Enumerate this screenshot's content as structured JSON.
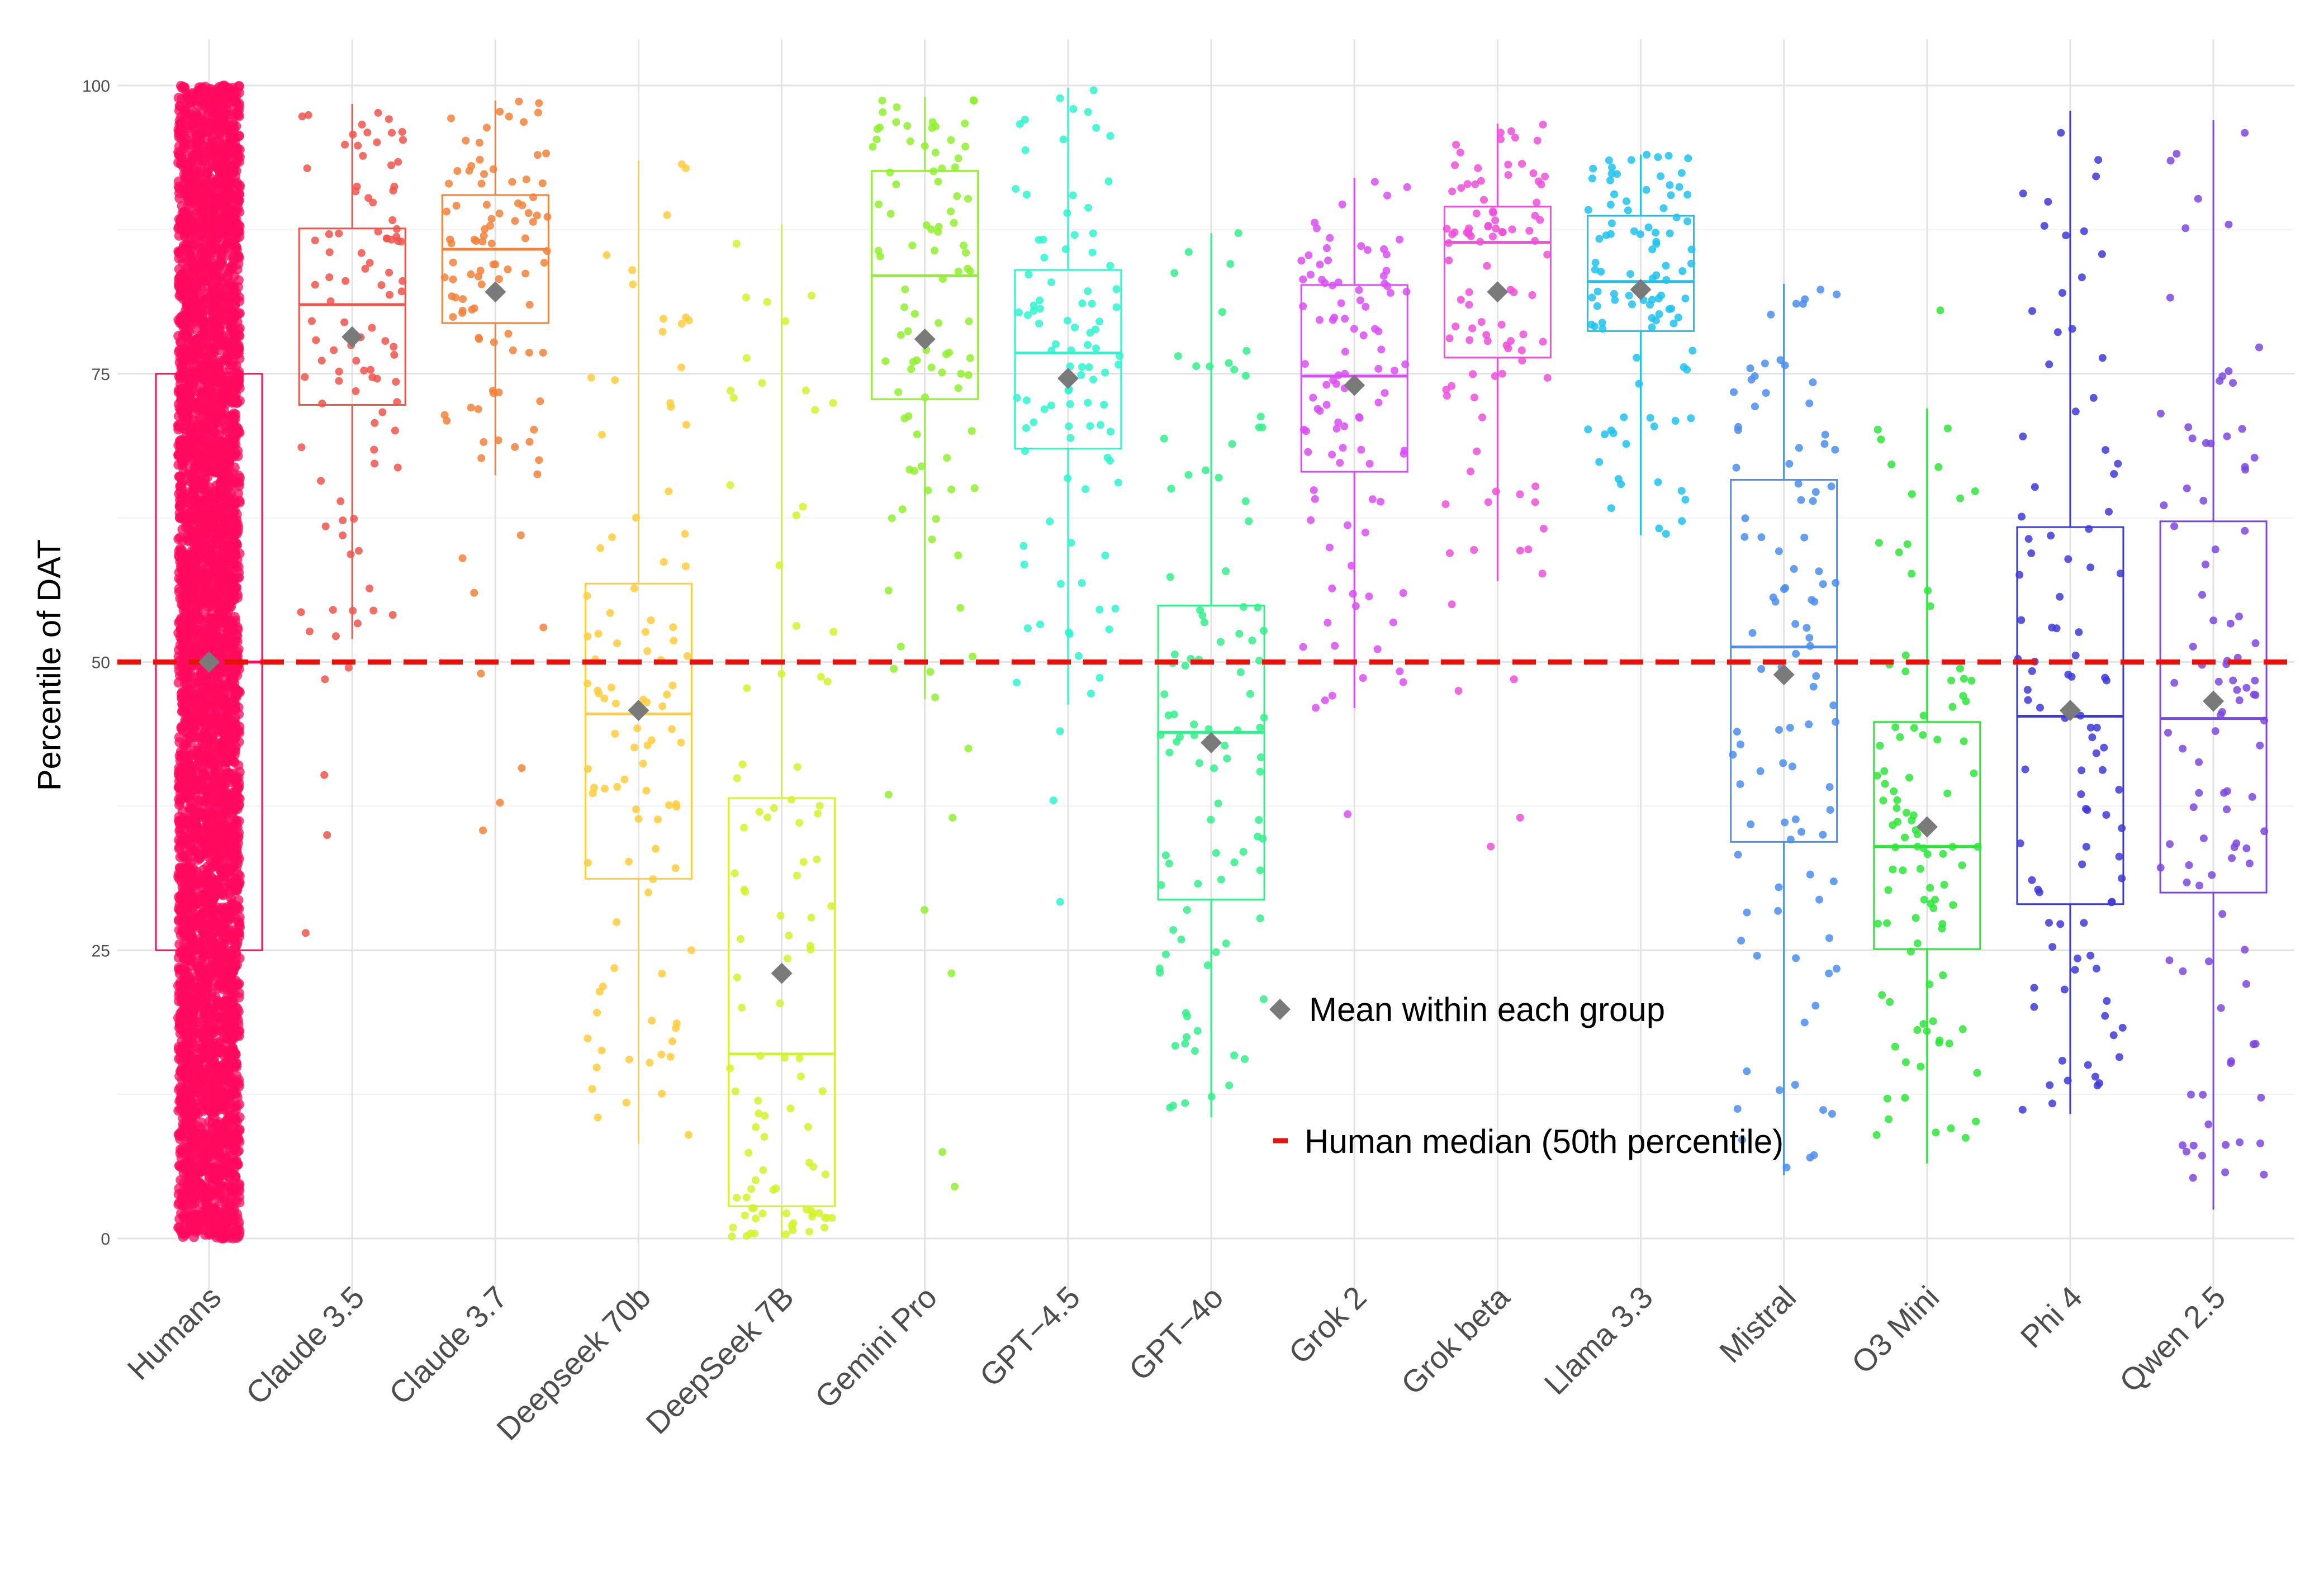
{
  "chart_data": {
    "type": "boxplot",
    "title": "",
    "xlabel": "",
    "ylabel": "Percentile of DAT",
    "ylim": [
      -5,
      104
    ],
    "yticks": [
      0,
      25,
      50,
      75,
      100
    ],
    "grid": true,
    "reference_line": {
      "value": 50,
      "style": "dashed",
      "color": "#e8120c"
    },
    "legend": {
      "placement": "bottom-center",
      "items": [
        {
          "symbol": "diamond",
          "label": "Mean within each group",
          "color": "#7a7a7a"
        },
        {
          "symbol": "dash",
          "label": "Human median (50th percentile)",
          "color": "#e8120c"
        }
      ]
    },
    "groups": [
      {
        "name": "Humans",
        "color": "#ff0a5f",
        "q1": 25,
        "median": 50,
        "q3": 75,
        "whisker_low": 0,
        "whisker_high": 100,
        "mean": 50,
        "n": 5000,
        "ymin": 0,
        "ymax": 100,
        "outliers": []
      },
      {
        "name": "Claude 3.5",
        "color": "#f0544a",
        "q1": 72.3,
        "median": 81.0,
        "q3": 87.6,
        "whisker_low": 52.0,
        "whisker_high": 98.4,
        "mean": 78.2,
        "n": 100,
        "ymin": 26.5,
        "ymax": 98.4,
        "outliers": [
          26.5,
          35.0,
          40.2,
          48.5,
          49.5
        ]
      },
      {
        "name": "Claude 3.7",
        "color": "#f2813a",
        "q1": 79.4,
        "median": 85.8,
        "q3": 90.5,
        "whisker_low": 66.2,
        "whisker_high": 98.7,
        "mean": 82.1,
        "n": 100,
        "ymin": 35.4,
        "ymax": 98.7,
        "outliers": [
          35.4,
          37.8,
          40.8,
          49.0,
          53.0,
          56.0,
          59.0,
          61.0
        ]
      },
      {
        "name": "Deepseek 70b",
        "color": "#ffcd3c",
        "q1": 31.2,
        "median": 45.5,
        "q3": 56.8,
        "whisker_low": 8.2,
        "whisker_high": 93.5,
        "mean": 45.8,
        "n": 100,
        "ymin": 8.2,
        "ymax": 93.5,
        "outliers": []
      },
      {
        "name": "DeepSeek 7B",
        "color": "#d4f22a",
        "q1": 2.8,
        "median": 16.0,
        "q3": 38.2,
        "whisker_low": 0,
        "whisker_high": 88.0,
        "mean": 23.0,
        "n": 100,
        "ymin": 0,
        "ymax": 88.0,
        "outliers": []
      },
      {
        "name": "Gemini Pro",
        "color": "#8ff02e",
        "q1": 72.8,
        "median": 83.5,
        "q3": 92.6,
        "whisker_low": 46.8,
        "whisker_high": 99.0,
        "mean": 78.0,
        "n": 100,
        "ymin": 4.5,
        "ymax": 99.0,
        "outliers": [
          4.5,
          7.5,
          23.0,
          28.5,
          36.5,
          38.5,
          42.5
        ]
      },
      {
        "name": "GPT-4.5",
        "color": "#2ef5cf",
        "q1": 68.5,
        "median": 76.8,
        "q3": 84.0,
        "whisker_low": 46.3,
        "whisker_high": 99.8,
        "mean": 74.6,
        "n": 100,
        "ymin": 29.2,
        "ymax": 99.8,
        "outliers": [
          29.2,
          38.0,
          44.0
        ]
      },
      {
        "name": "GPT-4o",
        "color": "#33f08a",
        "q1": 29.4,
        "median": 43.9,
        "q3": 54.9,
        "whisker_low": 10.5,
        "whisker_high": 87.2,
        "mean": 43.0,
        "n": 100,
        "ymin": 10.5,
        "ymax": 87.2,
        "outliers": []
      },
      {
        "name": "Grok 2",
        "color": "#d94ff5",
        "q1": 66.5,
        "median": 74.8,
        "q3": 82.7,
        "whisker_low": 46.0,
        "whisker_high": 92.0,
        "mean": 74.0,
        "n": 100,
        "ymin": 36.8,
        "ymax": 92.0,
        "outliers": [
          36.8
        ]
      },
      {
        "name": "Grok beta",
        "color": "#ed4fd8",
        "q1": 76.4,
        "median": 86.4,
        "q3": 89.5,
        "whisker_low": 57.0,
        "whisker_high": 96.7,
        "mean": 82.1,
        "n": 100,
        "ymin": 34.0,
        "ymax": 96.7,
        "outliers": [
          34.0,
          36.5,
          47.5,
          48.5,
          55.0
        ]
      },
      {
        "name": "Llama 3.3",
        "color": "#1fc3f0",
        "q1": 78.7,
        "median": 83.0,
        "q3": 88.7,
        "whisker_low": 61.0,
        "whisker_high": 94.0,
        "mean": 82.3,
        "n": 100,
        "ymin": 61.0,
        "ymax": 94.0,
        "outliers": []
      },
      {
        "name": "Mistral",
        "color": "#4a8ef0",
        "q1": 34.4,
        "median": 51.3,
        "q3": 65.8,
        "whisker_low": 5.5,
        "whisker_high": 82.8,
        "mean": 48.9,
        "n": 100,
        "ymin": 5.5,
        "ymax": 82.8,
        "outliers": []
      },
      {
        "name": "O3 Mini",
        "color": "#2de63a",
        "q1": 25.1,
        "median": 34.0,
        "q3": 44.8,
        "whisker_low": 6.5,
        "whisker_high": 72.0,
        "mean": 35.7,
        "n": 100,
        "ymin": 6.5,
        "ymax": 80.5,
        "outliers": [
          80.5
        ]
      },
      {
        "name": "Phi 4",
        "color": "#3e3ad9",
        "q1": 29.0,
        "median": 45.3,
        "q3": 61.7,
        "whisker_low": 10.8,
        "whisker_high": 97.8,
        "mean": 45.8,
        "n": 100,
        "ymin": 10.8,
        "ymax": 97.8,
        "outliers": []
      },
      {
        "name": "Qwen 2.5",
        "color": "#7c47e0",
        "q1": 30.0,
        "median": 45.1,
        "q3": 62.2,
        "whisker_low": 2.5,
        "whisker_high": 97.0,
        "mean": 46.6,
        "n": 100,
        "ymin": 2.5,
        "ymax": 97.0,
        "outliers": []
      }
    ]
  }
}
